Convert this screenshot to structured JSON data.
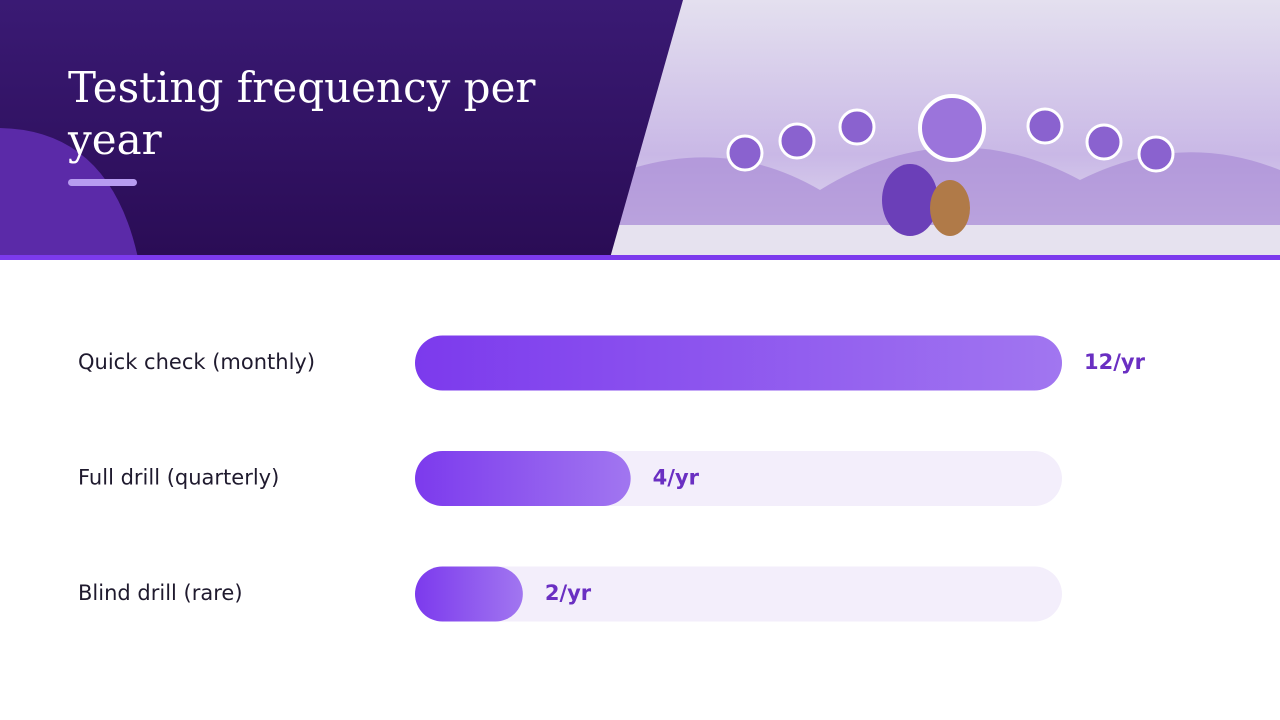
{
  "chart_data": {
    "type": "bar",
    "orientation": "horizontal",
    "title": "Testing frequency per year",
    "categories": [
      "Quick check (monthly)",
      "Full drill (quarterly)",
      "Blind drill (rare)"
    ],
    "values": [
      12,
      4,
      2
    ],
    "value_labels": [
      "12/yr",
      "4/yr",
      "2/yr"
    ],
    "color": "#7c3aed",
    "xlim": [
      0,
      12
    ]
  }
}
